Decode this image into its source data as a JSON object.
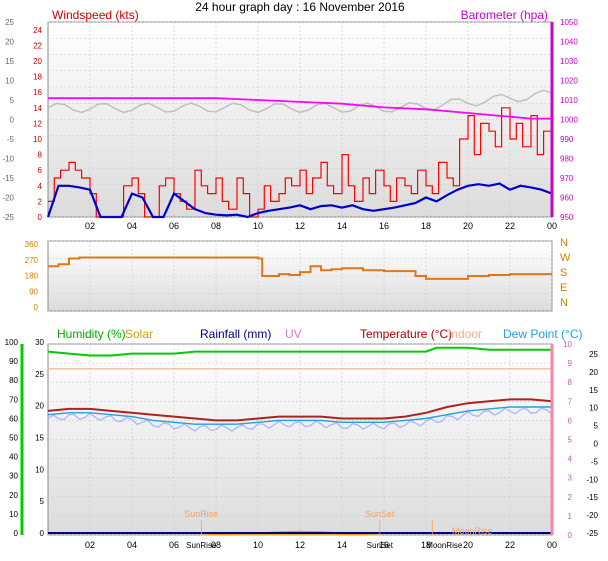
{
  "title": "24 hour graph day : 16 November 2016",
  "x_ticks": [
    "02",
    "04",
    "06",
    "08",
    "10",
    "12",
    "14",
    "16",
    "18",
    "20",
    "22",
    "00"
  ],
  "colors": {
    "wind": "#ff0000",
    "gust": "#d00000",
    "avg_wind": "#0000cc",
    "baro": "#ff00ff",
    "ghost": "#c0c0c0",
    "dir": "#e07818",
    "humidity": "#00cc00",
    "solar": "#e8a000",
    "rain": "#000080",
    "uv": "#d080d0",
    "temp": "#b02020",
    "indoor": "#f0b090",
    "dew": "#20a0e0",
    "dew_line": "#b0b8ff"
  },
  "chart_data": [
    {
      "type": "line",
      "name": "wind-panel",
      "labels": {
        "left": "Windspeed (kts)",
        "right": "Barometer (hpa)"
      },
      "left_axis": {
        "ticks": [
          "24",
          "22",
          "20",
          "18",
          "16",
          "14",
          "12",
          "10",
          "8",
          "6",
          "4",
          "2",
          "0"
        ],
        "ylim": [
          0,
          25
        ]
      },
      "right_axis": {
        "ticks": [
          "1050",
          "1040",
          "1030",
          "1020",
          "1010",
          "1000",
          "990",
          "980",
          "970",
          "960",
          "950"
        ],
        "ylim": [
          947,
          1052
        ]
      },
      "outer_left_axis": {
        "ticks": [
          "25",
          "20",
          "15",
          "10",
          "5",
          "0",
          "-5",
          "-10",
          "-15",
          "-20",
          "-25"
        ]
      },
      "series": [
        {
          "name": "Windspeed",
          "x": [
            0,
            0.3,
            0.6,
            1,
            1.3,
            1.6,
            2,
            2.3,
            2.6,
            3,
            3.3,
            3.6,
            4,
            4.3,
            4.6,
            5,
            5.3,
            5.6,
            6,
            6.3,
            6.6,
            7,
            7.3,
            7.6,
            8,
            8.3,
            8.6,
            9,
            9.3,
            9.6,
            10,
            10.3,
            10.6,
            11,
            11.3,
            11.6,
            12,
            12.3,
            12.6,
            13,
            13.3,
            13.6,
            14,
            14.3,
            14.6,
            15,
            15.3,
            15.6,
            16,
            16.3,
            16.6,
            17,
            17.3,
            17.6,
            18,
            18.3,
            18.6,
            19,
            19.3,
            19.6,
            20,
            20.3,
            20.6,
            21,
            21.3,
            21.6,
            22,
            22.3,
            22.6,
            23,
            23.3,
            23.6,
            24
          ],
          "values": [
            2,
            5,
            6,
            7,
            6,
            5,
            3,
            0,
            0,
            0,
            0,
            4,
            5,
            3,
            0,
            0,
            4,
            5,
            3,
            2,
            1,
            6,
            4,
            3,
            5,
            2,
            1,
            5,
            3,
            0,
            1,
            4,
            2,
            3,
            5,
            4,
            6,
            3,
            5,
            7,
            4,
            3,
            8,
            4,
            2,
            5,
            3,
            6,
            4,
            2,
            5,
            4,
            3,
            6,
            4,
            3,
            7,
            5,
            4,
            10,
            13,
            8,
            12,
            11,
            9,
            14,
            10,
            12,
            9,
            13,
            8,
            11,
            6
          ]
        },
        {
          "name": "Average windspeed",
          "x": [
            0,
            0.5,
            1,
            1.5,
            2,
            2.5,
            3,
            3.5,
            4,
            4.5,
            5,
            5.5,
            6,
            6.5,
            7,
            7.5,
            8,
            8.5,
            9,
            9.5,
            10,
            10.5,
            11,
            11.5,
            12,
            12.5,
            13,
            13.5,
            14,
            14.5,
            15,
            15.5,
            16,
            16.5,
            17,
            17.5,
            18,
            18.5,
            19,
            19.5,
            20,
            20.5,
            21,
            21.5,
            22,
            22.5,
            23,
            23.5,
            24
          ],
          "values": [
            0,
            4,
            4,
            3.8,
            3.5,
            0,
            0,
            0,
            3,
            2.5,
            0,
            0,
            3,
            2,
            1,
            0.5,
            0.3,
            0.2,
            0.3,
            0,
            0.5,
            0.8,
            1,
            1.2,
            1.5,
            1,
            1.4,
            1.5,
            1.2,
            1.5,
            1,
            0.8,
            1,
            1.2,
            1.5,
            1.8,
            2.5,
            2,
            2.8,
            3.5,
            4,
            4.2,
            4,
            4.3,
            3.5,
            4,
            3.8,
            3.5,
            3
          ]
        },
        {
          "name": "Barometer",
          "x": [
            0,
            2,
            4,
            6,
            8,
            10,
            12,
            14,
            16,
            18,
            19,
            20,
            21,
            22,
            23,
            24
          ],
          "values": [
            1011,
            1011,
            1011,
            1011,
            1011,
            1010,
            1009,
            1008,
            1006,
            1005,
            1004,
            1003,
            1002,
            1001,
            1000,
            1000
          ]
        }
      ]
    },
    {
      "type": "line",
      "name": "direction-panel",
      "left_axis": {
        "ticks": [
          "360",
          "270",
          "180",
          "90",
          "0"
        ],
        "ylim": [
          0,
          360
        ]
      },
      "right_axis": {
        "ticks": [
          "N",
          "W",
          "S",
          "E",
          "N"
        ]
      },
      "series": [
        {
          "name": "Wind direction",
          "x": [
            0,
            0.5,
            1,
            1.5,
            2,
            4,
            6,
            8,
            9,
            10,
            10.2,
            11,
            11.5,
            12,
            12.5,
            13,
            13.5,
            14,
            15,
            16,
            17,
            17.5,
            18,
            19,
            20,
            21,
            22,
            23,
            24
          ],
          "values": [
            230,
            240,
            270,
            275,
            275,
            275,
            275,
            275,
            275,
            270,
            180,
            190,
            185,
            200,
            230,
            210,
            215,
            220,
            210,
            205,
            205,
            180,
            165,
            165,
            180,
            185,
            190,
            190,
            190
          ]
        }
      ]
    },
    {
      "type": "line",
      "name": "weather-panel",
      "labels": {
        "humidity": "Humidity (%)",
        "solar": "Solar",
        "rain": "Rainfall (mm)",
        "uv": "UV",
        "temp": "Temperature (°C)",
        "indoor": "Indoor",
        "dew": "Dew Point (°C)"
      },
      "left_axis": {
        "ticks": [
          "100",
          "90",
          "80",
          "70",
          "60",
          "50",
          "40",
          "30",
          "20",
          "10",
          "0"
        ],
        "ylim": [
          0,
          100
        ]
      },
      "rain_axis": {
        "ticks": [
          "30",
          "25",
          "20",
          "15",
          "10",
          "5",
          "0"
        ],
        "ylim": [
          0,
          30
        ]
      },
      "uv_axis": {
        "ticks": [
          "10",
          "9",
          "8",
          "7",
          "6",
          "5",
          "4",
          "3",
          "2",
          "1",
          "0"
        ]
      },
      "temp_axis": {
        "ticks": [
          "25",
          "20",
          "15",
          "10",
          "5",
          "0",
          "-5",
          "-10",
          "-15",
          "-20",
          "-25"
        ],
        "ylim": [
          -25,
          25
        ]
      },
      "markers": {
        "sunrise": "SunRise",
        "sunset": "SunSet",
        "moonrise": "MoonRise"
      },
      "marker_hours": {
        "sunrise": 7.3,
        "sunset": 15.8,
        "moonrise": 18.3
      },
      "series": [
        {
          "name": "Humidity",
          "x": [
            0,
            1,
            2,
            3,
            4,
            5,
            6,
            7,
            8,
            10,
            12,
            14,
            16,
            18,
            18.5,
            19,
            20,
            21,
            22,
            23,
            24
          ],
          "values": [
            96,
            95,
            94,
            94,
            95,
            95,
            95,
            96,
            96,
            96,
            96,
            96,
            96,
            96,
            98,
            98,
            98,
            97,
            97,
            97,
            97
          ]
        },
        {
          "name": "Temperature",
          "x": [
            0,
            1,
            2,
            3,
            4,
            5,
            6,
            7,
            8,
            9,
            10,
            11,
            12,
            13,
            14,
            15,
            16,
            17,
            18,
            19,
            20,
            21,
            22,
            23,
            24
          ],
          "values": [
            7.5,
            8,
            8,
            7.5,
            7,
            6.5,
            6,
            5.5,
            5,
            5,
            5.5,
            6,
            6,
            6,
            5.5,
            5.5,
            5.5,
            6,
            7,
            8.5,
            9.5,
            10,
            10.5,
            10.5,
            10
          ]
        },
        {
          "name": "Dew Point",
          "x": [
            0,
            1,
            2,
            3,
            4,
            5,
            6,
            7,
            8,
            9,
            10,
            11,
            12,
            13,
            14,
            15,
            16,
            17,
            18,
            19,
            20,
            21,
            22,
            23,
            24
          ],
          "values": [
            6.5,
            7,
            7,
            6.5,
            6,
            5,
            4.5,
            4,
            4,
            4,
            4.5,
            5,
            5,
            5,
            4.5,
            4.5,
            4.5,
            5,
            5.5,
            6.5,
            7.5,
            8,
            8.5,
            8.5,
            8.5
          ]
        },
        {
          "name": "Indoor",
          "x": [
            0,
            24
          ],
          "values": [
            18.5,
            18.5
          ]
        },
        {
          "name": "Solar",
          "x": [
            7.3,
            8,
            9,
            10,
            11,
            12,
            12.5,
            13,
            13.5,
            14,
            15,
            15.8
          ],
          "values": [
            0,
            0.3,
            0.8,
            1.2,
            1.6,
            2,
            1.8,
            1.7,
            1.4,
            0.8,
            0.3,
            0
          ]
        }
      ]
    }
  ]
}
